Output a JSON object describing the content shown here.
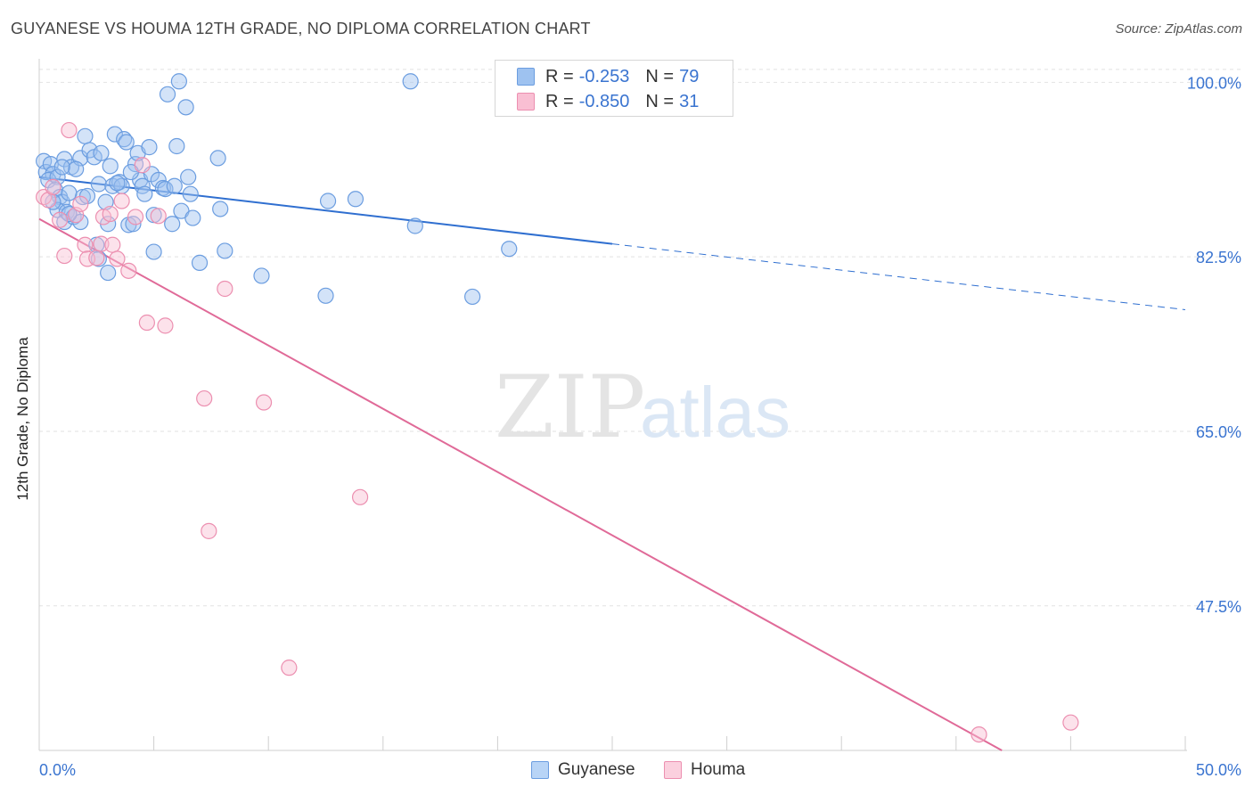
{
  "header": {
    "title": "GUYANESE VS HOUMA 12TH GRADE, NO DIPLOMA CORRELATION CHART",
    "source": "Source: ZipAtlas.com"
  },
  "watermark": {
    "zip": "ZIP",
    "atlas": "atlas"
  },
  "legend": {
    "rows": [
      {
        "r_label": "R =",
        "r_value": "-0.253",
        "n_label": "N =",
        "n_value": "79",
        "color": "#9ec2f0",
        "border": "#6b9de0"
      },
      {
        "r_label": "R =",
        "r_value": "-0.850",
        "n_label": "N =",
        "n_value": "31",
        "color": "#f9bfd3",
        "border": "#ec8fb0"
      }
    ]
  },
  "bottom_legend": [
    {
      "label": "Guyanese",
      "color": "#b8d4f6",
      "border": "#6b9de0"
    },
    {
      "label": "Houma",
      "color": "#fbd0de",
      "border": "#ec8fb0"
    }
  ],
  "chart_data": {
    "type": "scatter",
    "title": "GUYANESE VS HOUMA 12TH GRADE, NO DIPLOMA CORRELATION CHART",
    "xlabel": "",
    "ylabel": "12th Grade, No Diploma",
    "xlim": [
      0,
      50
    ],
    "ylim": [
      33,
      102
    ],
    "x_tick_labels": [
      "0.0%",
      "50.0%"
    ],
    "y_ticks": [
      100,
      82.5,
      65,
      47.5
    ],
    "y_tick_labels": [
      "100.0%",
      "82.5%",
      "65.0%",
      "47.5%"
    ],
    "grid": true,
    "legend_position": "top-center",
    "series": [
      {
        "name": "Guyanese",
        "color": "#6b9de0",
        "fill": "rgba(158,194,240,0.45)",
        "trend": {
          "x0": 0,
          "y0": 90.5,
          "x1": 25,
          "y1": 83.8,
          "dash_x1": 50,
          "dash_y1": 77.2
        },
        "points": [
          [
            0.2,
            92.1
          ],
          [
            0.3,
            91.0
          ],
          [
            0.5,
            91.8
          ],
          [
            0.6,
            90.8
          ],
          [
            0.4,
            90.2
          ],
          [
            0.8,
            90.5
          ],
          [
            0.7,
            89.2
          ],
          [
            0.9,
            88.5
          ],
          [
            1.0,
            88.0
          ],
          [
            0.8,
            87.2
          ],
          [
            1.2,
            87.0
          ],
          [
            1.1,
            86.0
          ],
          [
            1.5,
            86.5
          ],
          [
            1.8,
            86.0
          ],
          [
            1.1,
            92.3
          ],
          [
            1.4,
            91.5
          ],
          [
            1.8,
            92.4
          ],
          [
            2.0,
            94.6
          ],
          [
            2.2,
            93.2
          ],
          [
            2.4,
            92.5
          ],
          [
            2.7,
            92.9
          ],
          [
            1.6,
            91.3
          ],
          [
            1.9,
            88.5
          ],
          [
            2.1,
            88.6
          ],
          [
            1.3,
            88.9
          ],
          [
            2.6,
            89.8
          ],
          [
            2.9,
            88.0
          ],
          [
            3.0,
            85.8
          ],
          [
            3.1,
            91.6
          ],
          [
            3.2,
            89.6
          ],
          [
            3.3,
            94.8
          ],
          [
            3.5,
            90.0
          ],
          [
            3.6,
            89.6
          ],
          [
            3.7,
            94.3
          ],
          [
            3.8,
            94.0
          ],
          [
            3.9,
            85.7
          ],
          [
            4.1,
            85.8
          ],
          [
            4.2,
            91.8
          ],
          [
            4.3,
            92.9
          ],
          [
            4.4,
            90.2
          ],
          [
            4.5,
            89.6
          ],
          [
            4.6,
            88.8
          ],
          [
            4.8,
            93.5
          ],
          [
            4.9,
            90.8
          ],
          [
            5.0,
            83.0
          ],
          [
            5.2,
            90.2
          ],
          [
            5.4,
            89.4
          ],
          [
            5.5,
            89.3
          ],
          [
            5.6,
            98.8
          ],
          [
            5.8,
            85.8
          ],
          [
            5.9,
            89.6
          ],
          [
            6.0,
            93.6
          ],
          [
            6.1,
            100.1
          ],
          [
            6.2,
            87.1
          ],
          [
            6.4,
            97.5
          ],
          [
            6.5,
            90.5
          ],
          [
            6.6,
            88.8
          ],
          [
            6.7,
            86.4
          ],
          [
            7.0,
            81.9
          ],
          [
            7.8,
            92.4
          ],
          [
            7.9,
            87.3
          ],
          [
            8.1,
            83.1
          ],
          [
            9.7,
            80.6
          ],
          [
            12.5,
            78.6
          ],
          [
            12.6,
            88.1
          ],
          [
            13.8,
            88.3
          ],
          [
            16.2,
            100.1
          ],
          [
            16.4,
            85.6
          ],
          [
            18.9,
            78.5
          ],
          [
            20.5,
            83.3
          ],
          [
            2.5,
            83.7
          ],
          [
            2.6,
            82.3
          ],
          [
            3.0,
            80.9
          ],
          [
            1.3,
            86.8
          ],
          [
            0.6,
            88.0
          ],
          [
            3.4,
            89.9
          ],
          [
            5.0,
            86.7
          ],
          [
            1.0,
            91.5
          ],
          [
            4.0,
            91.0
          ]
        ]
      },
      {
        "name": "Houma",
        "color": "#ec8fb0",
        "fill": "rgba(249,191,211,0.45)",
        "trend": {
          "x0": 0,
          "y0": 86.3,
          "x1": 42,
          "y1": 33
        },
        "points": [
          [
            0.2,
            88.5
          ],
          [
            0.4,
            88.2
          ],
          [
            0.6,
            89.5
          ],
          [
            0.9,
            86.2
          ],
          [
            1.1,
            82.6
          ],
          [
            1.3,
            95.2
          ],
          [
            1.6,
            86.7
          ],
          [
            1.8,
            87.8
          ],
          [
            2.0,
            83.7
          ],
          [
            2.1,
            82.3
          ],
          [
            2.5,
            82.4
          ],
          [
            2.7,
            83.8
          ],
          [
            2.8,
            86.5
          ],
          [
            3.1,
            86.8
          ],
          [
            3.2,
            83.7
          ],
          [
            3.4,
            82.3
          ],
          [
            3.6,
            88.1
          ],
          [
            3.9,
            81.1
          ],
          [
            4.2,
            86.5
          ],
          [
            4.5,
            91.7
          ],
          [
            4.7,
            75.9
          ],
          [
            5.2,
            86.6
          ],
          [
            5.5,
            75.6
          ],
          [
            7.2,
            68.3
          ],
          [
            7.4,
            55.0
          ],
          [
            8.1,
            79.3
          ],
          [
            9.8,
            67.9
          ],
          [
            10.9,
            41.3
          ],
          [
            14.0,
            58.4
          ],
          [
            41.0,
            34.6
          ],
          [
            45.0,
            35.8
          ]
        ]
      }
    ]
  }
}
